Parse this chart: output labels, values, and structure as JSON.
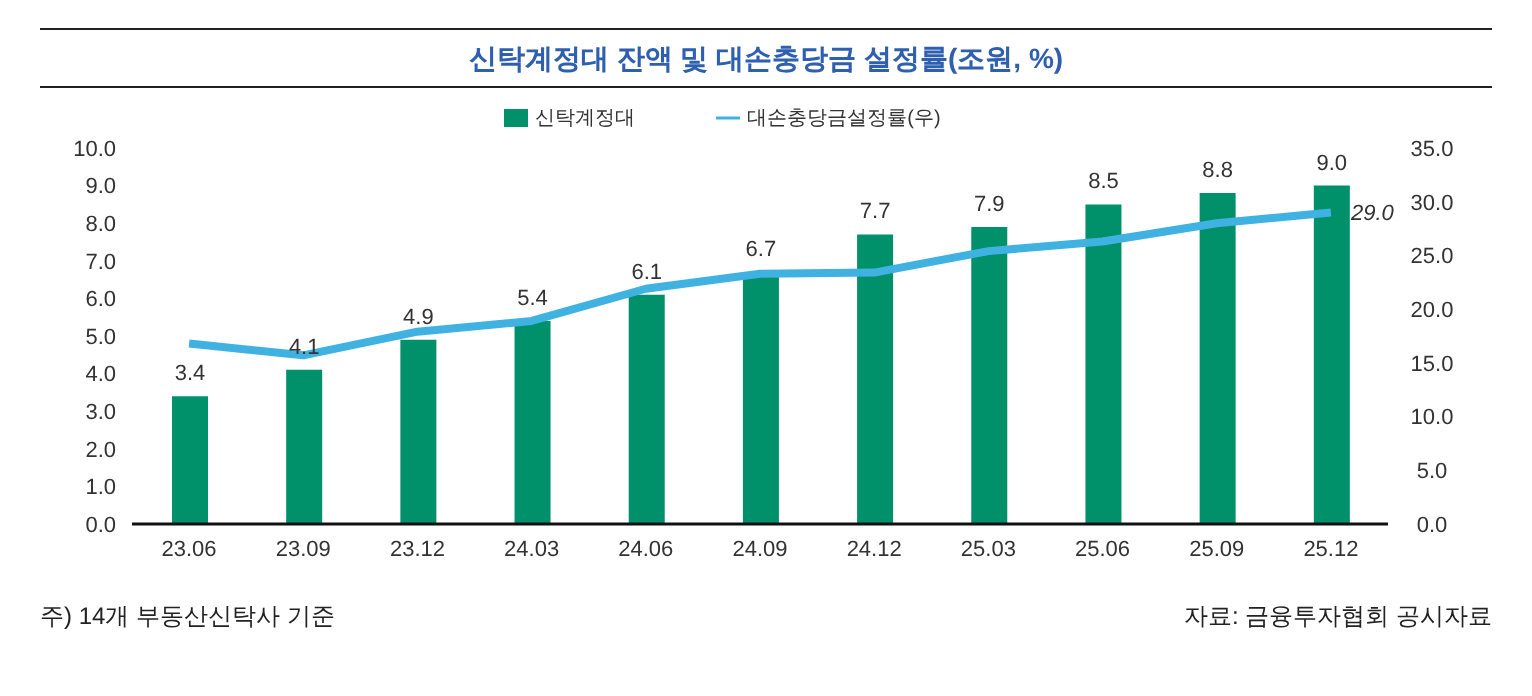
{
  "chart_data": {
    "type": "bar",
    "title": "신탁계정대 잔액 및 대손충당금 설정률(조원, %)",
    "categories": [
      "23.06",
      "23.09",
      "23.12",
      "24.03",
      "24.06",
      "24.09",
      "24.12",
      "25.03",
      "25.06",
      "25.09",
      "25.12"
    ],
    "series": [
      {
        "name": "신탁계정대",
        "color": "#00906a",
        "values": [
          3.4,
          4.1,
          4.9,
          5.4,
          6.1,
          6.7,
          7.7,
          7.9,
          8.5,
          8.8,
          9.0
        ],
        "value_labels": [
          "3.4",
          "4.1",
          "4.9",
          "5.4",
          "6.1",
          "6.7",
          "7.7",
          "7.9",
          "8.5",
          "8.8",
          "9.0"
        ]
      },
      {
        "name": "대손충당금설정률(우)",
        "type": "line",
        "axis": "y2",
        "color": "#3fb2e2",
        "values": [
          16.8,
          15.7,
          17.9,
          18.9,
          21.9,
          23.3,
          23.4,
          25.4,
          26.3,
          28.0,
          29.0
        ],
        "value_labels": [
          null,
          null,
          null,
          null,
          null,
          null,
          null,
          null,
          null,
          null,
          "29.0"
        ]
      }
    ],
    "ylim": [
      0,
      10
    ],
    "yticks": [
      {
        "value": 0,
        "label": "0.0"
      },
      {
        "value": 1,
        "label": "1.0"
      },
      {
        "value": 2,
        "label": "2.0"
      },
      {
        "value": 3,
        "label": "3.0"
      },
      {
        "value": 4,
        "label": "4.0"
      },
      {
        "value": 5,
        "label": "5.0"
      },
      {
        "value": 6,
        "label": "6.0"
      },
      {
        "value": 7,
        "label": "7.0"
      },
      {
        "value": 8,
        "label": "8.0"
      },
      {
        "value": 9,
        "label": "9.0"
      },
      {
        "value": 10,
        "label": "10.0"
      }
    ],
    "y2lim": [
      0,
      35
    ],
    "y2ticks": [
      {
        "value": 0,
        "label": "0.0"
      },
      {
        "value": 5,
        "label": "5.0"
      },
      {
        "value": 10,
        "label": "10.0"
      },
      {
        "value": 15,
        "label": "15.0"
      },
      {
        "value": 20,
        "label": "20.0"
      },
      {
        "value": 25,
        "label": "25.0"
      },
      {
        "value": 30,
        "label": "30.0"
      },
      {
        "value": 35,
        "label": "35.0"
      }
    ],
    "legend": "top",
    "grid": false,
    "marker": "none",
    "annotations": [
      "주) 14개 부동산신탁사 기준",
      "자료: 금융투자협회 공시자료"
    ]
  }
}
